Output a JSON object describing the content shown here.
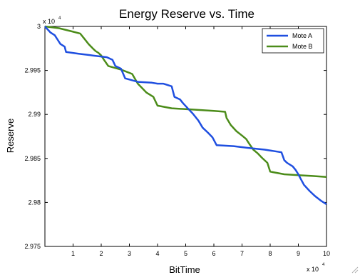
{
  "chart_data": {
    "type": "line",
    "title": "Energy Reserve vs. Time",
    "xlabel": "BitTime",
    "ylabel": "Reserve",
    "x_exponent_label": "x 10",
    "y_exponent_label": "x 10",
    "exponent": "4",
    "xlim": [
      0,
      100000
    ],
    "ylim": [
      29750,
      30000
    ],
    "x_ticks": [
      10000,
      20000,
      30000,
      40000,
      50000,
      60000,
      70000,
      80000,
      90000,
      100000
    ],
    "x_tick_labels": [
      "1",
      "2",
      "3",
      "4",
      "5",
      "6",
      "7",
      "8",
      "9",
      "10"
    ],
    "y_ticks": [
      29750,
      29800,
      29850,
      29900,
      29950,
      30000
    ],
    "y_tick_labels": [
      "2.975",
      "2.98",
      "2.985",
      "2.99",
      "2.995",
      "3"
    ],
    "grid": false,
    "legend_position": "top-right",
    "series": [
      {
        "name": "Mote A",
        "color": "#1f4fe0",
        "x": [
          0,
          2000,
          3500,
          4500,
          5500,
          7000,
          7500,
          12000,
          17000,
          22000,
          24000,
          25000,
          27000,
          28500,
          33000,
          38000,
          40000,
          42000,
          45000,
          46000,
          48000,
          49000,
          51000,
          52500,
          54500,
          56000,
          58000,
          59500,
          61000,
          67000,
          72000,
          78000,
          84000,
          85000,
          86000,
          88000,
          89000,
          90000,
          91000,
          92000,
          94000,
          96000,
          98000,
          100000
        ],
        "y": [
          30000,
          29993,
          29990,
          29985,
          29980,
          29977,
          29971,
          29969,
          29967,
          29965,
          29962,
          29955,
          29952,
          29941,
          29937,
          29936,
          29935,
          29935,
          29932,
          29920,
          29917,
          29913,
          29906,
          29901,
          29893,
          29885,
          29879,
          29874,
          29865,
          29864,
          29862,
          29860,
          29857,
          29848,
          29845,
          29841,
          29837,
          29832,
          29826,
          29820,
          29813,
          29807,
          29802,
          29798
        ]
      },
      {
        "name": "Mote B",
        "color": "#4c8c1a",
        "x": [
          0,
          5000,
          10000,
          12500,
          14000,
          15500,
          17000,
          18000,
          19000,
          20000,
          21000,
          22500,
          27000,
          31000,
          33000,
          34500,
          36000,
          38500,
          40000,
          45000,
          50000,
          55000,
          60000,
          64000,
          64500,
          66000,
          68000,
          70000,
          71500,
          72500,
          74000,
          75500,
          77000,
          79000,
          80000,
          85000,
          90000,
          95000,
          100000
        ],
        "y": [
          30000,
          29998,
          29994,
          29992,
          29986,
          29980,
          29975,
          29972,
          29970,
          29967,
          29962,
          29955,
          29951,
          29946,
          29935,
          29930,
          29925,
          29920,
          29910,
          29907,
          29906,
          29905,
          29904,
          29903,
          29896,
          29888,
          29881,
          29876,
          29872,
          29867,
          29860,
          29856,
          29851,
          29845,
          29835,
          29832,
          29831,
          29830,
          29829
        ]
      }
    ]
  }
}
